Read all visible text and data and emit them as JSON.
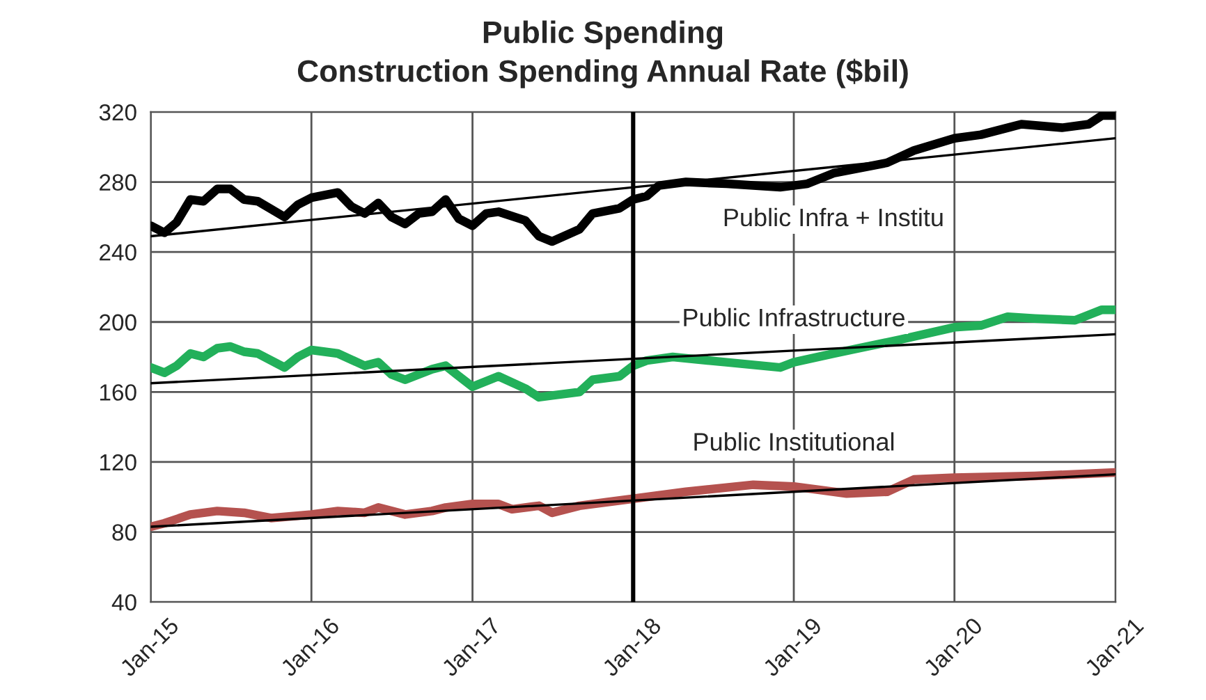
{
  "chart_data": {
    "type": "line",
    "title": "Public Spending",
    "subtitle": "Construction Spending Annual Rate ($bil)",
    "xlim": [
      "2015-01",
      "2021-01"
    ],
    "xticks": [
      {
        "value": "2015-01",
        "label": "Jan-15"
      },
      {
        "value": "2016-01",
        "label": "Jan-16"
      },
      {
        "value": "2017-01",
        "label": "Jan-17"
      },
      {
        "value": "2018-01",
        "label": "Jan-18"
      },
      {
        "value": "2019-01",
        "label": "Jan-19"
      },
      {
        "value": "2020-01",
        "label": "Jan-20"
      },
      {
        "value": "2021-01",
        "label": "Jan-21"
      }
    ],
    "ylim": [
      40,
      320
    ],
    "yticks": [
      40,
      80,
      120,
      160,
      200,
      240,
      280,
      320
    ],
    "grid": true,
    "legend": false,
    "marker": "none",
    "line_style": "solid",
    "ref_lines": [
      {
        "axis": "x",
        "value": "2018-01",
        "color": "#000000",
        "line_style": "solid"
      }
    ],
    "series": [
      {
        "name": "Public Infra + Institu",
        "color": "#000000",
        "x": [
          "2015-01",
          "2015-02",
          "2015-03",
          "2015-04",
          "2015-05",
          "2015-06",
          "2015-07",
          "2015-08",
          "2015-09",
          "2015-11",
          "2015-12",
          "2016-01",
          "2016-03",
          "2016-04",
          "2016-05",
          "2016-06",
          "2016-07",
          "2016-08",
          "2016-09",
          "2016-10",
          "2016-11",
          "2016-12",
          "2017-01",
          "2017-02",
          "2017-03",
          "2017-05",
          "2017-06",
          "2017-07",
          "2017-09",
          "2017-10",
          "2017-12",
          "2018-01",
          "2018-02",
          "2018-03",
          "2018-05",
          "2018-08",
          "2018-12",
          "2019-02",
          "2019-04",
          "2019-08",
          "2019-10",
          "2020-01",
          "2020-03",
          "2020-05",
          "2020-06",
          "2020-09",
          "2020-11",
          "2020-12",
          "2021-01"
        ],
        "values": [
          255,
          251,
          257,
          270,
          269,
          276,
          276,
          270,
          269,
          260,
          267,
          271,
          274,
          266,
          262,
          268,
          260,
          256,
          262,
          263,
          270,
          259,
          255,
          262,
          263,
          258,
          249,
          246,
          253,
          262,
          265,
          270,
          272,
          278,
          280,
          279,
          277,
          279,
          285,
          291,
          298,
          305,
          307,
          311,
          313,
          311,
          313,
          318,
          318
        ]
      },
      {
        "name": "Public Infrastructure",
        "color": "#22b05a",
        "x": [
          "2015-01",
          "2015-02",
          "2015-03",
          "2015-04",
          "2015-05",
          "2015-06",
          "2015-07",
          "2015-08",
          "2015-09",
          "2015-11",
          "2015-12",
          "2016-01",
          "2016-03",
          "2016-05",
          "2016-06",
          "2016-07",
          "2016-08",
          "2016-10",
          "2016-11",
          "2016-12",
          "2017-01",
          "2017-03",
          "2017-05",
          "2017-06",
          "2017-07",
          "2017-09",
          "2017-10",
          "2017-12",
          "2018-01",
          "2018-02",
          "2018-04",
          "2018-08",
          "2018-12",
          "2019-01",
          "2019-04",
          "2019-09",
          "2020-01",
          "2020-03",
          "2020-05",
          "2020-07",
          "2020-10",
          "2020-12",
          "2021-01"
        ],
        "values": [
          174,
          171,
          175,
          182,
          180,
          185,
          186,
          183,
          182,
          174,
          180,
          184,
          182,
          175,
          177,
          170,
          167,
          173,
          175,
          169,
          163,
          169,
          162,
          157,
          158,
          160,
          167,
          169,
          175,
          178,
          180,
          177,
          174,
          177,
          182,
          190,
          197,
          198,
          203,
          202,
          201,
          207,
          207
        ]
      },
      {
        "name": "Public Institutional",
        "color": "#b5524f",
        "x": [
          "2015-01",
          "2015-02",
          "2015-04",
          "2015-06",
          "2015-08",
          "2015-10",
          "2016-01",
          "2016-03",
          "2016-05",
          "2016-06",
          "2016-08",
          "2016-10",
          "2016-11",
          "2017-01",
          "2017-03",
          "2017-04",
          "2017-06",
          "2017-07",
          "2017-09",
          "2017-11",
          "2018-01",
          "2018-05",
          "2018-10",
          "2019-01",
          "2019-05",
          "2019-08",
          "2019-10",
          "2020-01",
          "2020-07",
          "2021-01"
        ],
        "values": [
          83,
          85,
          90,
          92,
          91,
          88,
          90,
          92,
          91,
          94,
          90,
          92,
          94,
          96,
          96,
          93,
          95,
          91,
          95,
          97,
          99,
          103,
          107,
          106,
          102,
          103,
          110,
          111,
          112,
          114
        ]
      },
      {
        "type": "line",
        "color": "#000000",
        "x": [
          "2015-01",
          "2021-01"
        ],
        "values": [
          249,
          305
        ]
      },
      {
        "type": "line",
        "color": "#000000",
        "x": [
          "2015-01",
          "2021-01"
        ],
        "values": [
          165,
          193
        ]
      },
      {
        "type": "line",
        "color": "#000000",
        "x": [
          "2015-01",
          "2021-01"
        ],
        "values": [
          83,
          113
        ]
      }
    ]
  }
}
